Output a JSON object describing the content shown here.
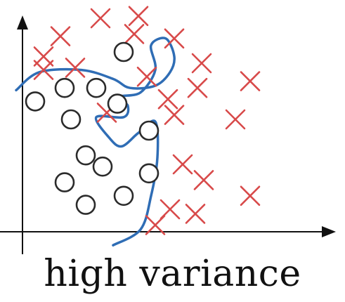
{
  "caption": "high variance",
  "colors": {
    "circle": "#2b2b2b",
    "cross": "#d84a4a",
    "boundary": "#2f6db5",
    "axis": "#111111"
  },
  "chart_data": {
    "type": "scatter",
    "title": "",
    "xlabel": "",
    "ylabel": "",
    "axes": {
      "x_arrow": true,
      "y_arrow": true,
      "grid": false
    },
    "series": [
      {
        "marker": "circle",
        "points": [
          [
            0.6,
            5.8
          ],
          [
            2.0,
            6.4
          ],
          [
            3.5,
            6.4
          ],
          [
            4.5,
            5.7
          ],
          [
            2.3,
            5.0
          ],
          [
            4.8,
            8.0
          ],
          [
            6.0,
            4.5
          ],
          [
            3.0,
            3.4
          ],
          [
            3.8,
            2.9
          ],
          [
            2.0,
            2.2
          ],
          [
            3.0,
            1.2
          ],
          [
            4.8,
            1.6
          ],
          [
            6.0,
            2.6
          ]
        ]
      },
      {
        "marker": "cross",
        "points": [
          [
            1.8,
            8.7
          ],
          [
            3.7,
            9.5
          ],
          [
            5.5,
            9.6
          ],
          [
            1.0,
            7.8
          ],
          [
            5.3,
            8.8
          ],
          [
            7.2,
            8.6
          ],
          [
            1.0,
            7.2
          ],
          [
            2.5,
            7.3
          ],
          [
            8.5,
            7.5
          ],
          [
            5.9,
            6.9
          ],
          [
            6.9,
            5.9
          ],
          [
            8.3,
            6.4
          ],
          [
            10.8,
            6.7
          ],
          [
            4.0,
            5.3
          ],
          [
            7.2,
            5.2
          ],
          [
            10.1,
            5.0
          ],
          [
            7.6,
            3.0
          ],
          [
            8.6,
            2.3
          ],
          [
            10.8,
            1.6
          ],
          [
            7.0,
            1.0
          ],
          [
            8.2,
            0.8
          ],
          [
            6.3,
            0.3
          ]
        ]
      }
    ],
    "boundary": [
      [
        -0.3,
        6.3
      ],
      [
        0.8,
        7.1
      ],
      [
        2.8,
        7.2
      ],
      [
        4.3,
        6.8
      ],
      [
        5.1,
        6.4
      ],
      [
        6.3,
        6.5
      ],
      [
        7.0,
        7.1
      ],
      [
        7.2,
        7.8
      ],
      [
        6.8,
        8.6
      ],
      [
        6.1,
        8.3
      ],
      [
        6.3,
        7.2
      ],
      [
        5.6,
        6.2
      ],
      [
        4.6,
        6.0
      ],
      [
        5.0,
        5.6
      ],
      [
        4.8,
        5.1
      ],
      [
        3.5,
        5.1
      ],
      [
        4.1,
        4.2
      ],
      [
        4.7,
        3.8
      ],
      [
        5.5,
        4.4
      ],
      [
        6.3,
        4.9
      ],
      [
        6.4,
        3.3
      ],
      [
        6.1,
        1.6
      ],
      [
        5.6,
        0.1
      ],
      [
        4.3,
        -0.6
      ]
    ]
  }
}
